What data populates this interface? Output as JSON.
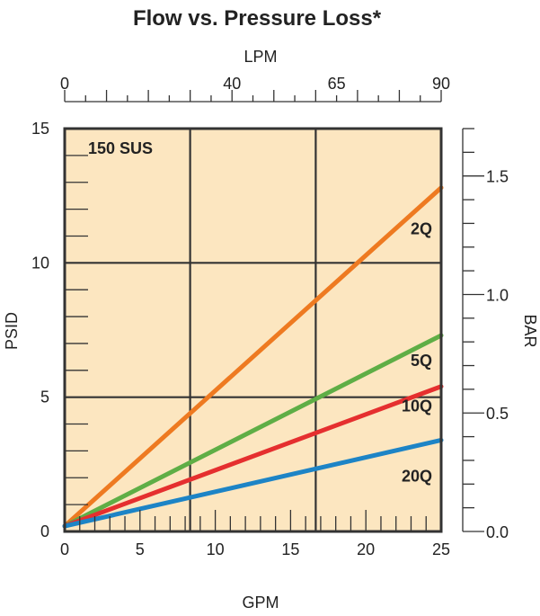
{
  "chart_data": {
    "type": "line",
    "title": "Flow vs. Pressure Loss*",
    "annotation": "150 SUS",
    "x_bottom": {
      "label": "GPM",
      "range": [
        0,
        25
      ],
      "ticks": [
        0,
        5,
        10,
        15,
        20,
        25
      ],
      "minor_step": 1
    },
    "x_top": {
      "label": "LPM",
      "ticks": [
        "0",
        "40",
        "65",
        "90"
      ]
    },
    "y_left": {
      "label": "PSID",
      "range": [
        0,
        15
      ],
      "ticks": [
        0,
        5,
        10,
        15
      ],
      "minor_step": 1
    },
    "y_right": {
      "label": "BAR",
      "ticks": [
        "0.0",
        "0.5",
        "1.0",
        "1.5"
      ]
    },
    "grid": {
      "x": [
        8.33,
        16.67
      ],
      "y": [
        5,
        10
      ]
    },
    "series": [
      {
        "name": "2Q",
        "color": "#ee7a21",
        "points": [
          [
            0,
            0.2
          ],
          [
            25,
            12.8
          ]
        ]
      },
      {
        "name": "5Q",
        "color": "#5fae46",
        "points": [
          [
            0,
            0.2
          ],
          [
            25,
            7.3
          ]
        ]
      },
      {
        "name": "10Q",
        "color": "#e52f2f",
        "points": [
          [
            0,
            0.2
          ],
          [
            25,
            5.4
          ]
        ]
      },
      {
        "name": "20Q",
        "color": "#1d84c6",
        "points": [
          [
            0,
            0.2
          ],
          [
            25,
            3.4
          ]
        ]
      }
    ],
    "colors": {
      "plot_background": "#fce6c0",
      "frame": "#333333",
      "text": "#222222"
    }
  }
}
